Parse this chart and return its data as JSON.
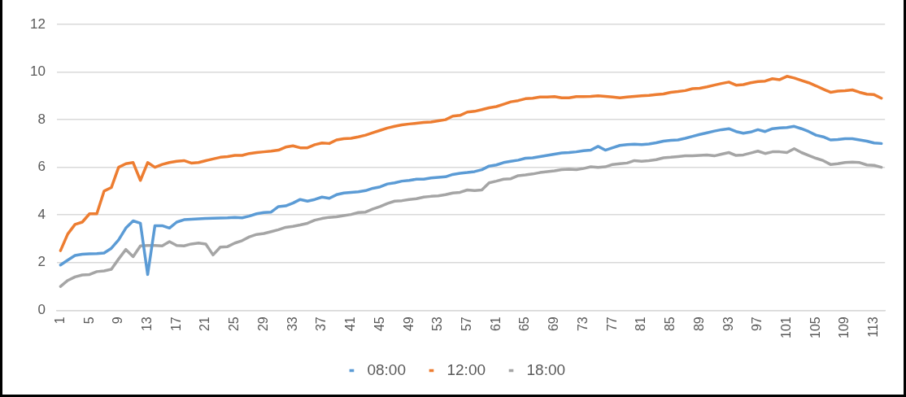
{
  "chart_data": {
    "type": "line",
    "categories": [
      "1",
      null,
      null,
      null,
      "5",
      null,
      null,
      null,
      "9",
      null,
      null,
      null,
      "13",
      null,
      null,
      null,
      "17",
      null,
      null,
      null,
      "21",
      null,
      null,
      null,
      "25",
      null,
      null,
      null,
      "29",
      null,
      null,
      null,
      "33",
      null,
      null,
      null,
      "37",
      null,
      null,
      null,
      "41",
      null,
      null,
      null,
      "45",
      null,
      null,
      null,
      "49",
      null,
      null,
      null,
      "53",
      null,
      null,
      null,
      "57",
      null,
      null,
      null,
      "61",
      null,
      null,
      null,
      "65",
      null,
      null,
      null,
      "69",
      null,
      null,
      null,
      "73",
      null,
      null,
      null,
      "77",
      null,
      null,
      null,
      "81",
      null,
      null,
      null,
      "85",
      null,
      null,
      null,
      "89",
      null,
      null,
      null,
      "93",
      null,
      null,
      null,
      "97",
      null,
      null,
      null,
      "101",
      null,
      null,
      null,
      "105",
      null,
      null,
      null,
      "109",
      null,
      null,
      null,
      "113",
      null
    ],
    "series": [
      {
        "name": "08:00",
        "color": "#5b9bd5",
        "values": [
          1.9,
          2.1,
          2.3,
          2.35,
          2.37,
          2.38,
          2.4,
          2.6,
          2.95,
          3.45,
          3.75,
          3.65,
          1.5,
          3.55,
          3.55,
          3.45,
          3.7,
          3.8,
          3.82,
          3.84,
          3.85,
          3.86,
          3.87,
          3.88,
          3.9,
          3.88,
          3.95,
          4.05,
          4.1,
          4.12,
          4.35,
          4.38,
          4.5,
          4.65,
          4.58,
          4.65,
          4.75,
          4.7,
          4.85,
          4.92,
          4.95,
          4.97,
          5.02,
          5.12,
          5.18,
          5.3,
          5.35,
          5.42,
          5.45,
          5.5,
          5.5,
          5.55,
          5.58,
          5.6,
          5.7,
          5.75,
          5.78,
          5.82,
          5.9,
          6.05,
          6.1,
          6.2,
          6.25,
          6.3,
          6.38,
          6.4,
          6.45,
          6.5,
          6.55,
          6.6,
          6.62,
          6.65,
          6.7,
          6.72,
          6.88,
          6.72,
          6.82,
          6.92,
          6.95,
          6.97,
          6.95,
          6.98,
          7.03,
          7.1,
          7.13,
          7.15,
          7.22,
          7.3,
          7.38,
          7.45,
          7.52,
          7.58,
          7.62,
          7.5,
          7.43,
          7.48,
          7.58,
          7.5,
          7.62,
          7.65,
          7.67,
          7.72,
          7.62,
          7.5,
          7.35,
          7.28,
          7.15,
          7.17,
          7.2,
          7.2,
          7.15,
          7.1,
          7.02,
          7.0
        ]
      },
      {
        "name": "12:00",
        "color": "#ed7d31",
        "values": [
          2.5,
          3.2,
          3.6,
          3.7,
          4.05,
          4.05,
          5.0,
          5.15,
          6.0,
          6.15,
          6.2,
          5.45,
          6.2,
          6.0,
          6.12,
          6.2,
          6.25,
          6.28,
          6.18,
          6.2,
          6.28,
          6.35,
          6.42,
          6.45,
          6.5,
          6.5,
          6.58,
          6.62,
          6.65,
          6.68,
          6.72,
          6.85,
          6.9,
          6.82,
          6.82,
          6.95,
          7.02,
          7.0,
          7.15,
          7.2,
          7.22,
          7.28,
          7.35,
          7.45,
          7.55,
          7.65,
          7.72,
          7.78,
          7.82,
          7.85,
          7.88,
          7.9,
          7.95,
          8.0,
          8.15,
          8.18,
          8.32,
          8.35,
          8.42,
          8.5,
          8.55,
          8.65,
          8.75,
          8.8,
          8.88,
          8.9,
          8.95,
          8.95,
          8.97,
          8.92,
          8.92,
          8.97,
          8.97,
          8.98,
          9.0,
          8.98,
          8.95,
          8.92,
          8.95,
          8.98,
          9.0,
          9.02,
          9.05,
          9.08,
          9.15,
          9.18,
          9.22,
          9.3,
          9.32,
          9.38,
          9.45,
          9.52,
          9.58,
          9.45,
          9.47,
          9.55,
          9.6,
          9.62,
          9.72,
          9.68,
          9.82,
          9.75,
          9.65,
          9.55,
          9.42,
          9.28,
          9.15,
          9.2,
          9.22,
          9.25,
          9.15,
          9.07,
          9.05,
          8.9
        ]
      },
      {
        "name": "18:00",
        "color": "#a5a5a5",
        "values": [
          1.0,
          1.25,
          1.4,
          1.48,
          1.5,
          1.62,
          1.65,
          1.72,
          2.15,
          2.55,
          2.25,
          2.7,
          2.72,
          2.72,
          2.7,
          2.88,
          2.72,
          2.7,
          2.78,
          2.82,
          2.78,
          2.32,
          2.65,
          2.67,
          2.82,
          2.92,
          3.08,
          3.18,
          3.22,
          3.3,
          3.38,
          3.48,
          3.52,
          3.58,
          3.65,
          3.78,
          3.85,
          3.9,
          3.92,
          3.97,
          4.02,
          4.1,
          4.12,
          4.25,
          4.35,
          4.48,
          4.58,
          4.6,
          4.65,
          4.68,
          4.75,
          4.78,
          4.8,
          4.85,
          4.92,
          4.95,
          5.05,
          5.02,
          5.05,
          5.35,
          5.42,
          5.5,
          5.52,
          5.65,
          5.68,
          5.72,
          5.78,
          5.82,
          5.85,
          5.9,
          5.92,
          5.9,
          5.95,
          6.02,
          6.0,
          6.02,
          6.12,
          6.15,
          6.18,
          6.28,
          6.25,
          6.28,
          6.32,
          6.4,
          6.42,
          6.45,
          6.48,
          6.48,
          6.5,
          6.52,
          6.48,
          6.55,
          6.62,
          6.5,
          6.52,
          6.6,
          6.68,
          6.58,
          6.65,
          6.65,
          6.62,
          6.78,
          6.62,
          6.5,
          6.38,
          6.28,
          6.12,
          6.15,
          6.2,
          6.22,
          6.2,
          6.1,
          6.08,
          6.0
        ]
      }
    ],
    "ylim": [
      0,
      12
    ],
    "yticks": [
      0,
      2,
      4,
      6,
      8,
      10,
      12
    ],
    "grid": "y",
    "legend": "bottom",
    "marker": "none",
    "line_style": "solid"
  }
}
